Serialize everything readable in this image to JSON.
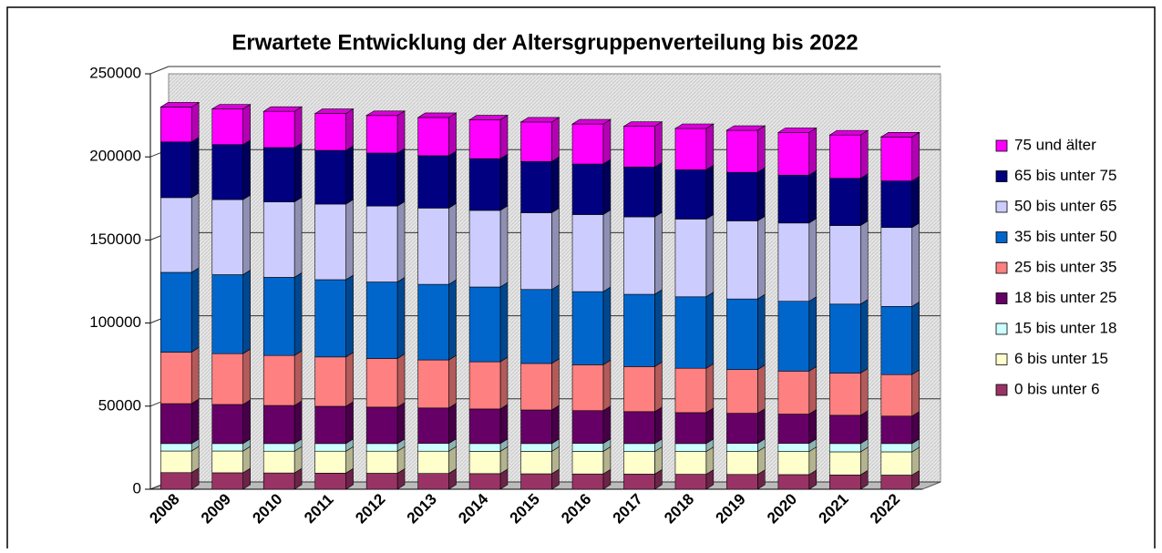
{
  "chart_data": {
    "type": "stacked_bar",
    "title": "Erwartete Entwicklung der Altersgruppenverteilung bis 2022",
    "categories": [
      "2008",
      "2009",
      "2010",
      "2011",
      "2012",
      "2013",
      "2014",
      "2015",
      "2016",
      "2017",
      "2018",
      "2019",
      "2020",
      "2021",
      "2022"
    ],
    "series": [
      {
        "name": "0 bis unter 6",
        "color": "#993366",
        "values": [
          10000,
          9900,
          9800,
          9700,
          9600,
          9500,
          9400,
          9300,
          9200,
          9100,
          9000,
          8900,
          8800,
          8600,
          8500
        ]
      },
      {
        "name": "6 bis unter 15",
        "color": "#ffffcc",
        "values": [
          13000,
          13100,
          13100,
          13200,
          13300,
          13400,
          13400,
          13500,
          13600,
          13600,
          13700,
          13800,
          13900,
          13900,
          14000
        ]
      },
      {
        "name": "15 bis unter 18",
        "color": "#ccffff",
        "values": [
          4500,
          4500,
          4600,
          4600,
          4600,
          4700,
          4700,
          4700,
          4800,
          4800,
          4800,
          4900,
          4900,
          5000,
          5000
        ]
      },
      {
        "name": "18 bis unter 25",
        "color": "#660066",
        "values": [
          24000,
          23500,
          22900,
          22400,
          21900,
          21300,
          20800,
          20200,
          19700,
          19200,
          18600,
          18100,
          17600,
          17000,
          16500
        ]
      },
      {
        "name": "25 bis unter 35",
        "color": "#ff8080",
        "values": [
          31000,
          30600,
          30100,
          29700,
          29300,
          28900,
          28400,
          28000,
          27600,
          27100,
          26700,
          26300,
          25900,
          25400,
          25000
        ]
      },
      {
        "name": "35 bis unter 50",
        "color": "#0066cc",
        "values": [
          48000,
          47500,
          47000,
          46500,
          46000,
          45500,
          45000,
          44500,
          44000,
          43500,
          43000,
          42500,
          42000,
          41500,
          41000
        ]
      },
      {
        "name": "50 bis unter 65",
        "color": "#ccccff",
        "values": [
          45000,
          45200,
          45400,
          45500,
          45700,
          45900,
          46100,
          46200,
          46400,
          46600,
          46800,
          47000,
          47100,
          47300,
          47500
        ]
      },
      {
        "name": "65 bis unter 75",
        "color": "#000080",
        "values": [
          33500,
          33100,
          32700,
          32300,
          31900,
          31500,
          31100,
          30800,
          30400,
          30000,
          29600,
          29200,
          28800,
          28400,
          28000
        ]
      },
      {
        "name": "75 und älter",
        "color": "#ff00ff",
        "values": [
          21000,
          21400,
          21800,
          22200,
          22600,
          23000,
          23400,
          23800,
          24100,
          24500,
          24900,
          25300,
          25700,
          26100,
          26500
        ]
      }
    ],
    "ylim": [
      0,
      250000
    ],
    "yticks": [
      0,
      50000,
      100000,
      150000,
      200000,
      250000
    ],
    "grid": true,
    "legend": "right"
  }
}
